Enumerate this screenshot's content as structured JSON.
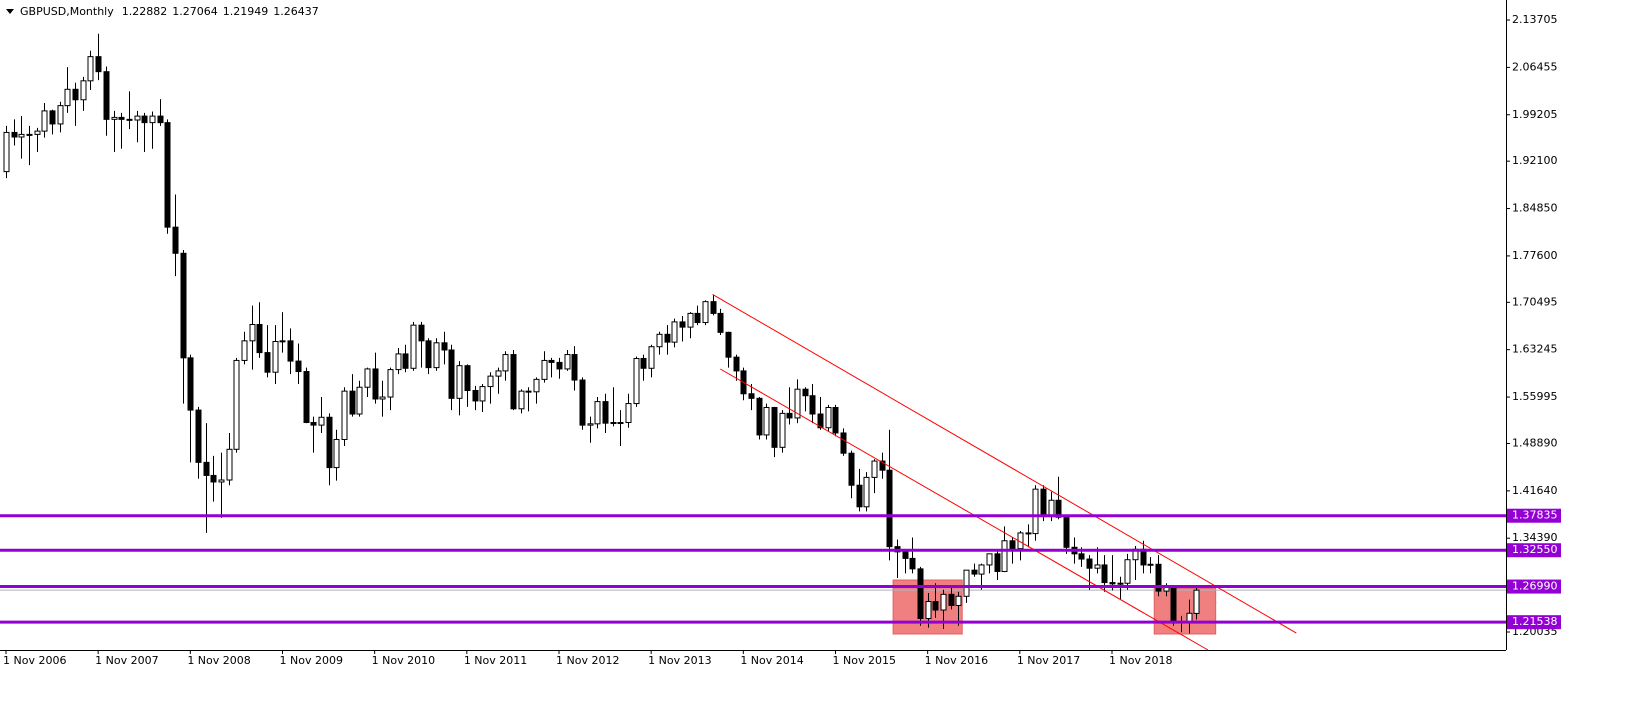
{
  "chart_data": {
    "type": "candlestick",
    "symbol": "GBPUSD,Monthly",
    "categories": [
      "1 Nov 2006",
      null,
      null,
      null,
      null,
      null,
      null,
      null,
      null,
      null,
      null,
      null,
      "1 Nov 2007",
      null,
      null,
      null,
      null,
      null,
      null,
      null,
      null,
      null,
      null,
      null,
      "1 Nov 2008",
      null,
      null,
      null,
      null,
      null,
      null,
      null,
      null,
      null,
      null,
      null,
      "1 Nov 2009",
      null,
      null,
      null,
      null,
      null,
      null,
      null,
      null,
      null,
      null,
      null,
      "1 Nov 2010",
      null,
      null,
      null,
      null,
      null,
      null,
      null,
      null,
      null,
      null,
      null,
      "1 Nov 2011",
      null,
      null,
      null,
      null,
      null,
      null,
      null,
      null,
      null,
      null,
      null,
      "1 Nov 2012",
      null,
      null,
      null,
      null,
      null,
      null,
      null,
      null,
      null,
      null,
      null,
      "1 Nov 2013",
      null,
      null,
      null,
      null,
      null,
      null,
      null,
      null,
      null,
      null,
      null,
      "1 Nov 2014",
      null,
      null,
      null,
      null,
      null,
      null,
      null,
      null,
      null,
      null,
      null,
      "1 Nov 2015",
      null,
      null,
      null,
      null,
      null,
      null,
      null,
      null,
      null,
      null,
      null,
      "1 Nov 2016",
      null,
      null,
      null,
      null,
      null,
      null,
      null,
      null,
      null,
      null,
      null,
      "1 Nov 2017",
      null,
      null,
      null,
      null,
      null,
      null,
      null,
      null,
      null,
      null,
      null,
      "1 Nov 2018",
      null,
      null,
      null,
      null,
      null,
      null,
      null,
      null,
      null,
      null,
      null
    ],
    "open": [
      1.905,
      1.965,
      1.958,
      1.962,
      1.962,
      1.967,
      1.998,
      1.978,
      2.006,
      2.031,
      2.015,
      2.044,
      2.081,
      2.058,
      1.985,
      1.988,
      1.985,
      1.984,
      1.99,
      1.98,
      1.99,
      1.98,
      1.82,
      1.78,
      1.62,
      1.54,
      1.46,
      1.44,
      1.43,
      1.433,
      1.48,
      1.616,
      1.646,
      1.671,
      1.628,
      1.598,
      1.645,
      1.646,
      1.615,
      1.599,
      1.521,
      1.517,
      1.529,
      1.452,
      1.495,
      1.569,
      1.534,
      1.575,
      1.603,
      1.557,
      1.56,
      1.602,
      1.626,
      1.604,
      1.67,
      1.646,
      1.605,
      1.643,
      1.632,
      1.558,
      1.608,
      1.57,
      1.554,
      1.576,
      1.592,
      1.6,
      1.625,
      1.542,
      1.569,
      1.568,
      1.587,
      1.616,
      1.613,
      1.603,
      1.625,
      1.586,
      1.517,
      1.519,
      1.553,
      1.52,
      1.521,
      1.521,
      1.55,
      1.619,
      1.604,
      1.637,
      1.656,
      1.644,
      1.675,
      1.667,
      1.688,
      1.674,
      1.706,
      1.688,
      1.659,
      1.621,
      1.6,
      1.565,
      1.558,
      1.502,
      1.544,
      1.483,
      1.535,
      1.528,
      1.572,
      1.562,
      1.534,
      1.513,
      1.544,
      1.505,
      1.474,
      1.425,
      1.392,
      1.437,
      1.462,
      1.448,
      1.331,
      1.323,
      1.313,
      1.297,
      1.221,
      1.247,
      1.234,
      1.258,
      1.241,
      1.255,
      1.295,
      1.289,
      1.303,
      1.32,
      1.293,
      1.34,
      1.328,
      1.352,
      1.351,
      1.419,
      1.377,
      1.402,
      1.376,
      1.33,
      1.32,
      1.312,
      1.298,
      1.303,
      1.276,
      1.274,
      1.275,
      1.311,
      1.327,
      1.303,
      1.304,
      1.263,
      1.269,
      1.216,
      1.216,
      1.22882
    ],
    "high": [
      1.975,
      1.985,
      1.99,
      1.975,
      1.972,
      2.01,
      2.0,
      2.012,
      2.065,
      2.041,
      2.05,
      2.09,
      2.116,
      2.066,
      1.998,
      1.995,
      2.028,
      1.998,
      1.995,
      1.997,
      2.016,
      1.985,
      1.87,
      1.785,
      1.625,
      1.545,
      1.52,
      1.47,
      1.475,
      1.505,
      1.62,
      1.66,
      1.7,
      1.705,
      1.67,
      1.67,
      1.69,
      1.665,
      1.642,
      1.605,
      1.53,
      1.56,
      1.535,
      1.51,
      1.575,
      1.595,
      1.585,
      1.605,
      1.628,
      1.585,
      1.605,
      1.635,
      1.64,
      1.675,
      1.675,
      1.65,
      1.65,
      1.66,
      1.64,
      1.615,
      1.61,
      1.577,
      1.58,
      1.598,
      1.605,
      1.63,
      1.632,
      1.572,
      1.575,
      1.59,
      1.63,
      1.62,
      1.62,
      1.632,
      1.638,
      1.59,
      1.53,
      1.56,
      1.565,
      1.575,
      1.54,
      1.565,
      1.622,
      1.625,
      1.64,
      1.66,
      1.67,
      1.68,
      1.684,
      1.69,
      1.7,
      1.708,
      1.717,
      1.695,
      1.66,
      1.625,
      1.605,
      1.58,
      1.56,
      1.55,
      1.545,
      1.54,
      1.575,
      1.587,
      1.575,
      1.58,
      1.56,
      1.548,
      1.548,
      1.512,
      1.478,
      1.45,
      1.445,
      1.465,
      1.475,
      1.51,
      1.342,
      1.325,
      1.345,
      1.3,
      1.26,
      1.275,
      1.265,
      1.27,
      1.262,
      1.295,
      1.305,
      1.305,
      1.32,
      1.325,
      1.362,
      1.345,
      1.355,
      1.365,
      1.425,
      1.425,
      1.415,
      1.438,
      1.38,
      1.345,
      1.33,
      1.318,
      1.33,
      1.318,
      1.318,
      1.285,
      1.32,
      1.332,
      1.34,
      1.315,
      1.318,
      1.275,
      1.27,
      1.225,
      1.25,
      1.27064
    ],
    "low": [
      1.895,
      1.945,
      1.925,
      1.915,
      1.935,
      1.957,
      1.962,
      1.965,
      1.995,
      1.975,
      1.998,
      2.03,
      2.045,
      1.96,
      1.935,
      1.94,
      1.97,
      1.95,
      1.935,
      1.94,
      1.975,
      1.81,
      1.745,
      1.55,
      1.46,
      1.435,
      1.352,
      1.4,
      1.375,
      1.425,
      1.475,
      1.61,
      1.602,
      1.62,
      1.59,
      1.58,
      1.628,
      1.595,
      1.58,
      1.52,
      1.475,
      1.505,
      1.425,
      1.432,
      1.485,
      1.53,
      1.53,
      1.56,
      1.55,
      1.53,
      1.54,
      1.595,
      1.598,
      1.6,
      1.605,
      1.595,
      1.6,
      1.61,
      1.54,
      1.532,
      1.545,
      1.54,
      1.537,
      1.55,
      1.565,
      1.585,
      1.54,
      1.535,
      1.538,
      1.55,
      1.582,
      1.59,
      1.588,
      1.6,
      1.57,
      1.51,
      1.49,
      1.512,
      1.505,
      1.515,
      1.485,
      1.513,
      1.545,
      1.585,
      1.59,
      1.625,
      1.625,
      1.636,
      1.645,
      1.65,
      1.67,
      1.67,
      1.685,
      1.655,
      1.605,
      1.585,
      1.555,
      1.54,
      1.495,
      1.495,
      1.468,
      1.475,
      1.518,
      1.52,
      1.538,
      1.52,
      1.51,
      1.508,
      1.5,
      1.47,
      1.405,
      1.385,
      1.385,
      1.413,
      1.435,
      1.31,
      1.283,
      1.29,
      1.29,
      1.21,
      1.207,
      1.222,
      1.205,
      1.235,
      1.21,
      1.245,
      1.285,
      1.265,
      1.29,
      1.28,
      1.292,
      1.305,
      1.31,
      1.33,
      1.34,
      1.37,
      1.37,
      1.373,
      1.32,
      1.305,
      1.3,
      1.265,
      1.29,
      1.262,
      1.264,
      1.25,
      1.265,
      1.28,
      1.29,
      1.29,
      1.255,
      1.255,
      1.21,
      1.2,
      1.198,
      1.21949
    ],
    "close": [
      1.965,
      1.958,
      1.962,
      1.962,
      1.967,
      1.998,
      1.978,
      2.006,
      2.031,
      2.015,
      2.044,
      2.081,
      2.058,
      1.985,
      1.988,
      1.985,
      1.984,
      1.99,
      1.98,
      1.99,
      1.98,
      1.82,
      1.78,
      1.62,
      1.54,
      1.46,
      1.44,
      1.43,
      1.433,
      1.48,
      1.616,
      1.646,
      1.671,
      1.628,
      1.598,
      1.645,
      1.646,
      1.615,
      1.599,
      1.521,
      1.517,
      1.529,
      1.452,
      1.495,
      1.569,
      1.534,
      1.575,
      1.603,
      1.557,
      1.56,
      1.602,
      1.626,
      1.604,
      1.67,
      1.646,
      1.605,
      1.643,
      1.632,
      1.558,
      1.608,
      1.57,
      1.554,
      1.576,
      1.592,
      1.6,
      1.625,
      1.542,
      1.569,
      1.568,
      1.587,
      1.616,
      1.613,
      1.603,
      1.625,
      1.586,
      1.517,
      1.519,
      1.553,
      1.52,
      1.521,
      1.521,
      1.55,
      1.619,
      1.604,
      1.637,
      1.656,
      1.644,
      1.675,
      1.667,
      1.688,
      1.674,
      1.706,
      1.688,
      1.659,
      1.621,
      1.6,
      1.565,
      1.558,
      1.502,
      1.544,
      1.483,
      1.535,
      1.528,
      1.572,
      1.562,
      1.534,
      1.513,
      1.544,
      1.505,
      1.474,
      1.425,
      1.392,
      1.437,
      1.462,
      1.448,
      1.331,
      1.323,
      1.313,
      1.297,
      1.221,
      1.247,
      1.234,
      1.258,
      1.241,
      1.255,
      1.295,
      1.289,
      1.303,
      1.32,
      1.293,
      1.34,
      1.328,
      1.352,
      1.351,
      1.419,
      1.377,
      1.402,
      1.376,
      1.33,
      1.32,
      1.312,
      1.298,
      1.303,
      1.276,
      1.274,
      1.275,
      1.311,
      1.327,
      1.303,
      1.304,
      1.263,
      1.269,
      1.216,
      1.216,
      1.229,
      1.26437
    ],
    "up_color": "#ffffff",
    "down_color": "#000000",
    "xlim": [
      -0.78,
      195.3
    ],
    "ylim": [
      1.1728,
      2.1677
    ],
    "yticks": [
      2.13705,
      2.06455,
      1.99205,
      {
        "value": 1.921,
        "label": "1.92100"
      },
      {
        "value": 1.8485,
        "label": "1.84850"
      },
      {
        "value": 1.776,
        "label": "1.77600"
      },
      1.70495,
      1.63245,
      1.55995,
      {
        "value": 1.4889,
        "label": "1.48890"
      },
      {
        "value": 1.4164,
        "label": "1.41640"
      },
      {
        "value": 1.3439,
        "label": "1.34390"
      },
      1.20035
    ],
    "levels": [
      1.37835,
      {
        "value": 1.3255,
        "label": "1.32550"
      },
      {
        "value": 1.2699,
        "label": "1.26990"
      },
      1.21538
    ],
    "level_color": "#9400d3",
    "trendlines": [
      {
        "x": [
          92,
          168
        ],
        "y": [
          1.717,
          1.1988
        ]
      },
      {
        "x": [
          93,
          156.5
        ],
        "y": [
          1.6029,
          1.1728
        ]
      }
    ],
    "line_color": "#ff0000",
    "boxes": [
      {
        "x": [
          115.5,
          124.5
        ],
        "y": [
          1.1973,
          1.2799
        ]
      },
      {
        "x": [
          149.5,
          157.5
        ],
        "y": [
          1.1973,
          1.2677
        ]
      }
    ],
    "box_color": "#f08080"
  }
}
